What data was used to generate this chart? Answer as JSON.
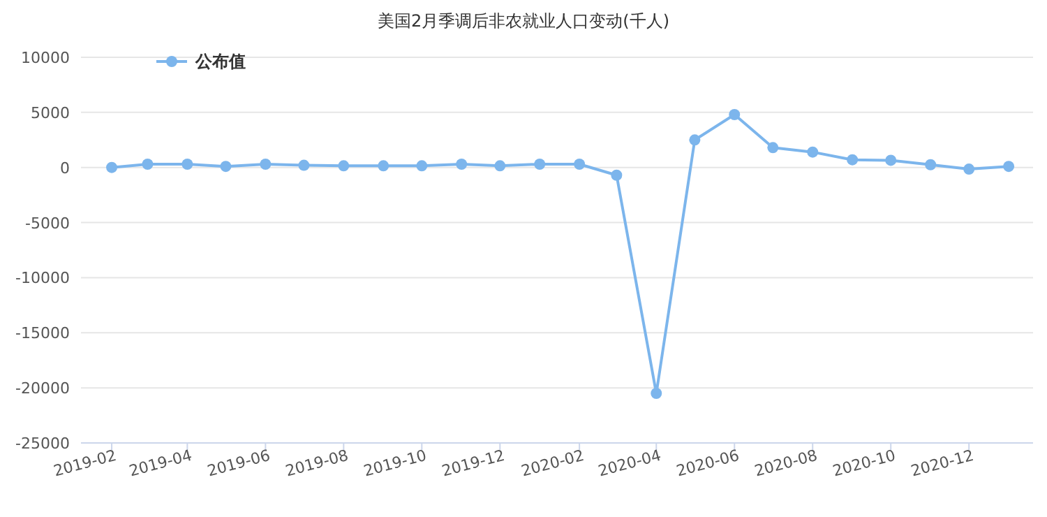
{
  "chart_data": {
    "type": "line",
    "title": "美国2月季调后非农就业人口变动(千人)",
    "x": [
      "2019-02",
      "2019-03",
      "2019-04",
      "2019-05",
      "2019-06",
      "2019-07",
      "2019-08",
      "2019-09",
      "2019-10",
      "2019-11",
      "2019-12",
      "2020-01",
      "2020-02",
      "2020-03",
      "2020-04",
      "2020-05",
      "2020-06",
      "2020-07",
      "2020-08",
      "2020-09",
      "2020-10",
      "2020-11",
      "2020-12",
      "2021-01"
    ],
    "series": [
      {
        "name": "公布值",
        "color": "#7cb5ec",
        "values": [
          0,
          300,
          300,
          100,
          300,
          200,
          150,
          150,
          150,
          300,
          150,
          300,
          300,
          -700,
          -20500,
          2500,
          4800,
          1800,
          1400,
          700,
          650,
          250,
          -150,
          100
        ]
      }
    ],
    "xlim": [
      "2019-01-08",
      "2021-01-20"
    ],
    "xticks": [
      {
        "value": "2019-02",
        "label": "2019-02"
      },
      {
        "value": "2019-04",
        "label": "2019-04"
      },
      {
        "value": "2019-06",
        "label": "2019-06"
      },
      {
        "value": "2019-08",
        "label": "2019-08"
      },
      {
        "value": "2019-10",
        "label": "2019-10"
      },
      {
        "value": "2019-12",
        "label": "2019-12"
      },
      {
        "value": "2020-02",
        "label": "2020-02"
      },
      {
        "value": "2020-04",
        "label": "2020-04"
      },
      {
        "value": "2020-06",
        "label": "2020-06"
      },
      {
        "value": "2020-08",
        "label": "2020-08"
      },
      {
        "value": "2020-10",
        "label": "2020-10"
      },
      {
        "value": "2020-12",
        "label": "2020-12"
      }
    ],
    "ylim": [
      -25000,
      10000
    ],
    "yticks": [
      -25000,
      -20000,
      -15000,
      -10000,
      -5000,
      0,
      5000,
      10000
    ],
    "grid": "y",
    "legend": "top left",
    "marker": "circle",
    "line_style": "solid"
  }
}
